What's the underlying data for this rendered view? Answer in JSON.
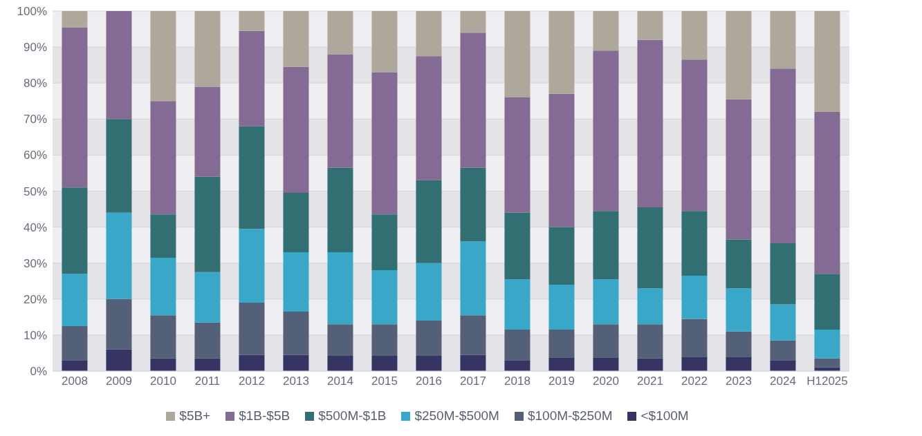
{
  "chart_data": {
    "type": "bar",
    "stacked": true,
    "categories": [
      "2008",
      "2009",
      "2010",
      "2011",
      "2012",
      "2013",
      "2014",
      "2015",
      "2016",
      "2017",
      "2018",
      "2019",
      "2020",
      "2021",
      "2022",
      "2023",
      "2024",
      "H12025"
    ],
    "series": [
      {
        "name": "<$100M",
        "color": "#363463",
        "values": [
          3,
          6,
          3.5,
          3.5,
          4.5,
          4.5,
          4.2,
          4.2,
          4.2,
          4.5,
          3,
          3.8,
          3.8,
          3.5,
          4,
          4,
          3,
          1
        ]
      },
      {
        "name": "$100M-$250M",
        "color": "#545f78",
        "values": [
          9.5,
          14,
          12,
          10,
          14.5,
          12,
          8.8,
          8.8,
          9.8,
          11,
          8.5,
          7.7,
          9.2,
          9.5,
          10.5,
          7,
          5.5,
          2.5
        ]
      },
      {
        "name": "$250M-$500M",
        "color": "#39a7c8",
        "values": [
          14.5,
          24,
          16,
          14,
          20.5,
          16.5,
          20,
          15,
          16,
          20.5,
          14,
          12.5,
          12.5,
          10,
          12,
          12,
          10,
          8
        ]
      },
      {
        "name": "$500M-$1B",
        "color": "#316f73",
        "values": [
          24,
          26,
          12,
          26.5,
          28.5,
          16.5,
          23.5,
          15.5,
          23,
          20.5,
          18.5,
          16,
          19,
          22.5,
          18,
          13.5,
          17,
          15.5
        ]
      },
      {
        "name": "$1B-$5B",
        "color": "#836b93",
        "values": [
          44.5,
          30,
          31.5,
          25,
          26.5,
          35,
          31.5,
          39.5,
          34.5,
          37.5,
          32,
          37,
          44.5,
          46.5,
          42,
          39,
          48.5,
          45
        ]
      },
      {
        "name": "$5B+",
        "color": "#aea89c",
        "values": [
          4.5,
          0,
          25,
          21,
          5.5,
          15.5,
          12,
          17,
          12.5,
          6,
          24,
          23,
          11,
          8,
          13.5,
          24.5,
          16,
          28
        ]
      }
    ],
    "ylim": [
      0,
      100
    ],
    "yticks": [
      {
        "value": 0,
        "label": "0%"
      },
      {
        "value": 10,
        "label": "10%"
      },
      {
        "value": 20,
        "label": "20%"
      },
      {
        "value": 30,
        "label": "30%"
      },
      {
        "value": 40,
        "label": "40%"
      },
      {
        "value": 50,
        "label": "50%"
      },
      {
        "value": 60,
        "label": "60%"
      },
      {
        "value": 70,
        "label": "70%"
      },
      {
        "value": 80,
        "label": "80%"
      },
      {
        "value": 90,
        "label": "90%"
      },
      {
        "value": 100,
        "label": "100%"
      }
    ],
    "grid": "y",
    "legend": "bottom"
  }
}
